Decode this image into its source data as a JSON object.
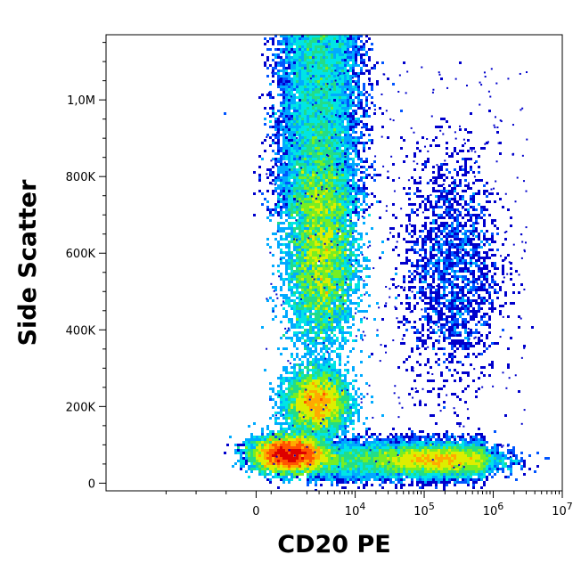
{
  "chart_data": {
    "type": "scatter",
    "title": "",
    "xlabel": "CD20 PE",
    "ylabel": "Side Scatter",
    "x_scale": "biexponential",
    "y_scale": "linear",
    "xlim": [
      -5000,
      10000000
    ],
    "ylim": [
      -20000,
      1170000
    ],
    "grid": false,
    "legend": "none",
    "x_ticks": [
      {
        "value": 0,
        "label": "0"
      },
      {
        "value": 10000,
        "label": "10",
        "sup": "4"
      },
      {
        "value": 100000,
        "label": "10",
        "sup": "5"
      },
      {
        "value": 1000000,
        "label": "10",
        "sup": "6"
      },
      {
        "value": 10000000,
        "label": "10",
        "sup": "7"
      }
    ],
    "y_ticks": [
      {
        "value": 0,
        "label": "0"
      },
      {
        "value": 200000,
        "label": "200K"
      },
      {
        "value": 400000,
        "label": "400K"
      },
      {
        "value": 600000,
        "label": "600K"
      },
      {
        "value": 800000,
        "label": "800K"
      },
      {
        "value": 1000000,
        "label": "1,0M"
      }
    ],
    "density_colormap": [
      "#0000cc",
      "#0055ff",
      "#00aaff",
      "#00e5e5",
      "#22dd88",
      "#77ee22",
      "#ddee00",
      "#ffaa00",
      "#ff5500",
      "#dd0000"
    ],
    "populations": [
      {
        "x_center": 1100,
        "y_center": 75000,
        "x_spread_decades": 0.25,
        "y_spread": 22000,
        "density_peak": 1.0
      },
      {
        "x_center": 2800,
        "y_center": 210000,
        "x_spread_decades": 0.22,
        "y_spread": 40000,
        "density_peak": 0.6
      },
      {
        "x_center": 3200,
        "y_center": 590000,
        "x_spread_decades": 0.25,
        "y_spread": 120000,
        "density_peak": 0.9
      },
      {
        "x_center": 150000,
        "y_center": 60000,
        "x_spread_decades": 0.45,
        "y_spread": 18000,
        "density_peak": 0.35
      },
      {
        "x_center": 250000,
        "y_center": 560000,
        "x_spread_decades": 0.35,
        "y_spread": 150000,
        "density_peak": 0.08
      }
    ]
  }
}
